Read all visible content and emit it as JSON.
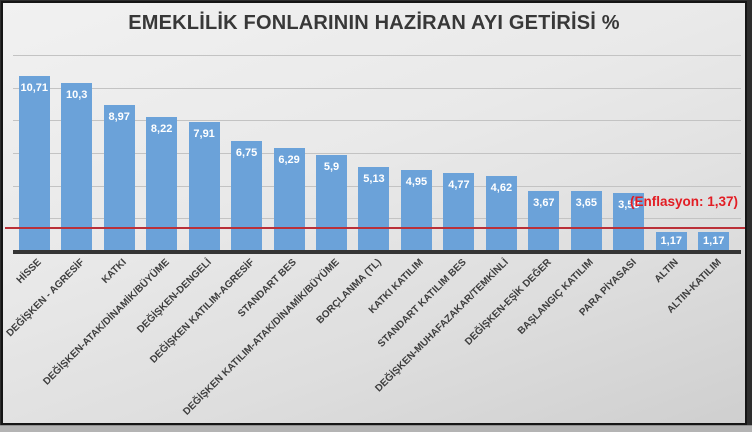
{
  "chart_data": {
    "type": "bar",
    "title": "EMEKLİLİK FONLARININ HAZİRAN AYI GETİRİSİ %",
    "categories": [
      "HİSSE",
      "DEĞİŞKEN - AGRESİF",
      "KATKI",
      "DEĞİŞKEN-ATAK/DİNAMİK/BÜYÜME",
      "DEĞİŞKEN-DENGELİ",
      "DEĞİŞKEN KATILIM-AGRESİF",
      "STANDART BES",
      "DEĞİŞKEN KATILIM-ATAK/DİNAMİK/BÜYÜME",
      "BORÇLANMA (TL)",
      "KATKI KATILIM",
      "STANDART KATILIM BES",
      "DEĞİŞKEN-MUHAFAZAKAR/TEMKİNLİ",
      "DEĞİŞKEN-EŞİK DEĞER",
      "BAŞLANGIÇ KATILIM",
      "PARA PİYASASI",
      "ALTIN",
      "ALTIN-KATILIM"
    ],
    "values": [
      10.71,
      10.3,
      8.97,
      8.22,
      7.91,
      6.75,
      6.29,
      5.9,
      5.13,
      4.95,
      4.77,
      4.62,
      3.67,
      3.65,
      3.58,
      1.17,
      1.17
    ],
    "value_labels": [
      "10,71",
      "10,3",
      "8,97",
      "8,22",
      "7,91",
      "6,75",
      "6,29",
      "5,9",
      "5,13",
      "4,95",
      "4,77",
      "4,62",
      "3,67",
      "3,65",
      "3,58",
      "1,17",
      "1,17"
    ],
    "xlabel": "",
    "ylabel": "",
    "ylim": [
      0,
      12
    ],
    "gridline_step": 2,
    "grid": true,
    "legend": false,
    "annotation": {
      "label": "(Enflasyon: 1,37)",
      "value": 1.37
    },
    "colors": {
      "bar": "#6ba2d9",
      "annotation_text": "#e21d24",
      "reference_line": "#bb3038",
      "title_text": "#383838",
      "axis_line": "#353535"
    }
  }
}
